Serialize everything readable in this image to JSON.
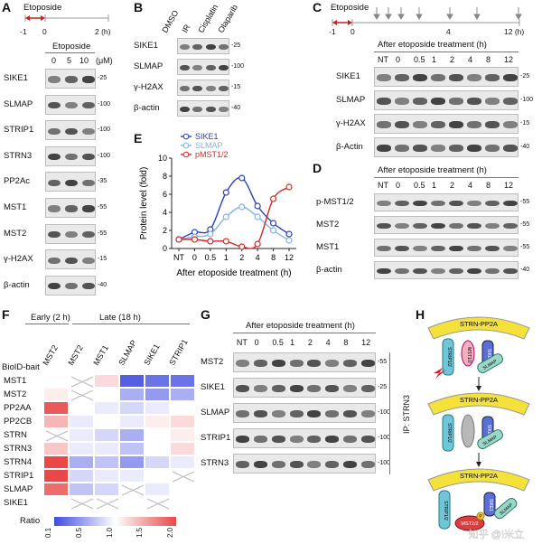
{
  "panels": {
    "A": "A",
    "B": "B",
    "C": "C",
    "D": "D",
    "E": "E",
    "F": "F",
    "G": "G",
    "H": "H"
  },
  "A": {
    "treatment": "Etoposide",
    "time_start": "-1",
    "time_zero": "0",
    "time_end": "2 (h)",
    "dose_label": "Etoposide",
    "doses": [
      "0",
      "5",
      "10"
    ],
    "dose_unit": "(μM)",
    "rows": [
      {
        "name": "SIKE1",
        "mw": "25"
      },
      {
        "name": "SLMAP",
        "mw": "100"
      },
      {
        "name": "STRIP1",
        "mw": "100"
      },
      {
        "name": "STRN3",
        "mw": "100"
      },
      {
        "name": "PP2Ac",
        "mw": "35"
      },
      {
        "name": "MST1",
        "mw": "55"
      },
      {
        "name": "MST2",
        "mw": "55"
      },
      {
        "name": "γ-H2AX",
        "mw": "15"
      },
      {
        "name": "β-actin",
        "mw": "40"
      }
    ]
  },
  "B": {
    "lanes": [
      "DMSO",
      "IR",
      "Cisplatin",
      "Olaparib"
    ],
    "rows": [
      {
        "name": "SIKE1",
        "mw": "25"
      },
      {
        "name": "SLMAP",
        "mw": "100"
      },
      {
        "name": "γ-H2AX",
        "mw": "15"
      },
      {
        "name": "β-actin",
        "mw": "40"
      }
    ]
  },
  "C": {
    "treatment": "Etoposide",
    "time_start": "-1",
    "time_zero": "0",
    "time_mid": "4",
    "time_end": "12 (h)",
    "header": "After etoposide treatment (h)",
    "lanes": [
      "NT",
      "0",
      "0.5",
      "1",
      "2",
      "4",
      "8",
      "12"
    ],
    "rows": [
      {
        "name": "SIKE1",
        "mw": "25"
      },
      {
        "name": "SLMAP",
        "mw": "100"
      },
      {
        "name": "γ-H2AX",
        "mw": "15"
      },
      {
        "name": "β-Actin",
        "mw": "40"
      }
    ]
  },
  "D": {
    "header": "After etoposide treatment (h)",
    "lanes": [
      "NT",
      "0",
      "0.5",
      "1",
      "2",
      "4",
      "8",
      "12"
    ],
    "rows": [
      {
        "name": "p-MST1/2",
        "mw": "55"
      },
      {
        "name": "MST2",
        "mw": "55"
      },
      {
        "name": "MST1",
        "mw": "55"
      },
      {
        "name": "β-actin",
        "mw": "40"
      }
    ]
  },
  "chart_data": {
    "type": "line",
    "categories": [
      "NT",
      "0",
      "0.5",
      "1",
      "2",
      "4",
      "8",
      "12"
    ],
    "xlabel": "After etoposide treatment (h)",
    "ylabel": "Protein level (fold)",
    "ylim": [
      0,
      10
    ],
    "yticks": [
      "0",
      "2",
      "4",
      "6",
      "8",
      "10"
    ],
    "legend_position": "top",
    "series": [
      {
        "name": "SIKE1",
        "color": "#2b3fb8",
        "values": [
          1.0,
          1.8,
          2.1,
          6.2,
          7.8,
          4.7,
          2.8,
          1.6
        ]
      },
      {
        "name": "SLMAP",
        "color": "#7fb3e6",
        "values": [
          1.0,
          1.3,
          1.6,
          3.5,
          4.6,
          3.5,
          2.0,
          0.9
        ]
      },
      {
        "name": "pMST1/2",
        "color": "#d02a2a",
        "values": [
          1.0,
          1.0,
          0.8,
          0.8,
          0.2,
          0.5,
          5.5,
          6.8
        ]
      }
    ]
  },
  "F": {
    "early_label": "Early (2 h)",
    "late_label": "Late (18 h)",
    "bait_label": "BioID-bait",
    "columns": [
      "MST2",
      "MST2",
      "MST1",
      "SLMAP",
      "SIKE1",
      "STRIP1"
    ],
    "rows": [
      "MST1",
      "MST2",
      "PP2AA",
      "PP2CB",
      "STRN",
      "STRN3",
      "STRN4",
      "STRIP1",
      "SLMAP",
      "SIKE1"
    ],
    "values": [
      [
        1.0,
        null,
        1.2,
        0.2,
        0.3,
        0.3
      ],
      [
        1.1,
        null,
        1.0,
        0.6,
        0.5,
        0.6
      ],
      [
        1.9,
        1.0,
        0.9,
        0.8,
        0.9,
        1.0
      ],
      [
        1.4,
        0.9,
        1.0,
        0.9,
        1.1,
        1.2
      ],
      [
        null,
        0.9,
        0.8,
        0.6,
        1.0,
        1.1
      ],
      [
        1.3,
        0.9,
        0.9,
        0.7,
        1.0,
        1.2
      ],
      [
        2.0,
        0.6,
        0.7,
        0.5,
        0.8,
        0.9
      ],
      [
        2.0,
        0.8,
        0.9,
        0.9,
        1.0,
        null
      ],
      [
        1.8,
        0.7,
        0.8,
        null,
        0.9,
        1.0
      ],
      [
        1.0,
        null,
        null,
        1.0,
        null,
        1.0
      ]
    ],
    "legend_title": "Ratio",
    "legend_ticks": [
      "0.1",
      "0.5",
      "1.0",
      "1.5",
      "2.0"
    ]
  },
  "G": {
    "header": "After etoposide treatment (h)",
    "lanes": [
      "NT",
      "0",
      "0.5",
      "1",
      "2",
      "4",
      "8",
      "12"
    ],
    "rows": [
      {
        "name": "MST2",
        "mw": "55"
      },
      {
        "name": "SIKE1",
        "mw": "25"
      },
      {
        "name": "SLMAP",
        "mw": "100"
      },
      {
        "name": "STRIP1",
        "mw": "100"
      },
      {
        "name": "STRN3",
        "mw": "100"
      }
    ],
    "ip_label": "IP: STRN3"
  },
  "H": {
    "complex": "STRN-PP2A",
    "labels": {
      "strip": "STRIP1/2",
      "sike": "SIKE1",
      "slmap": "SLMAP",
      "mst": "MST1/2",
      "p": "P"
    },
    "watermark": "知乎 @I米立"
  }
}
